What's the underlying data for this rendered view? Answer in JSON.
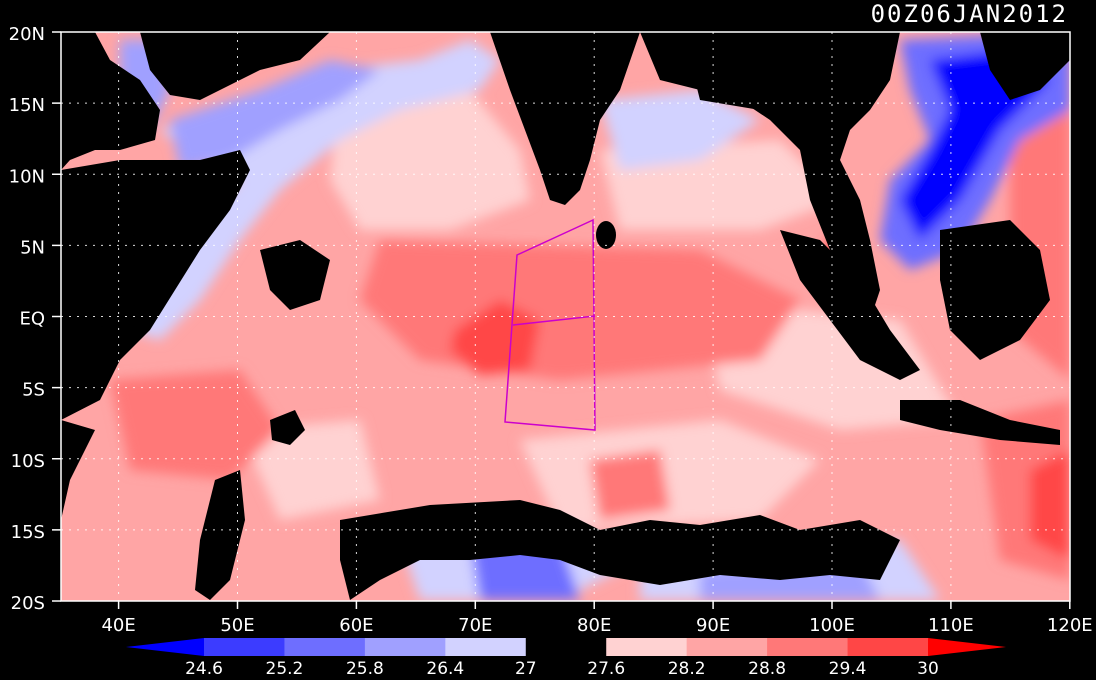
{
  "title": "00Z06JAN2012",
  "map": {
    "lat_labels": [
      "20N",
      "15N",
      "10N",
      "5N",
      "EQ",
      "5S",
      "10S",
      "15S",
      "20S"
    ],
    "lon_labels": [
      "40E",
      "50E",
      "60E",
      "70E",
      "80E",
      "90E",
      "100E",
      "110E",
      "120E"
    ]
  },
  "colorbar": {
    "labels": [
      "24.6",
      "25.2",
      "25.8",
      "26.4",
      "27",
      "27.6",
      "28.2",
      "28.8",
      "29.4",
      "30"
    ],
    "colors": [
      "#0000ff",
      "#3c3cff",
      "#6e6eff",
      "#a0a0ff",
      "#d2d2ff",
      "#000000",
      "#ffd2d2",
      "#ffa5a5",
      "#ff7878",
      "#ff4646",
      "#ff0000"
    ]
  },
  "colors": {
    "background": "#000000",
    "land": "#000000",
    "frame": "#ffffff",
    "grid": "#ffffff",
    "region_outline": "#cc00cc"
  }
}
